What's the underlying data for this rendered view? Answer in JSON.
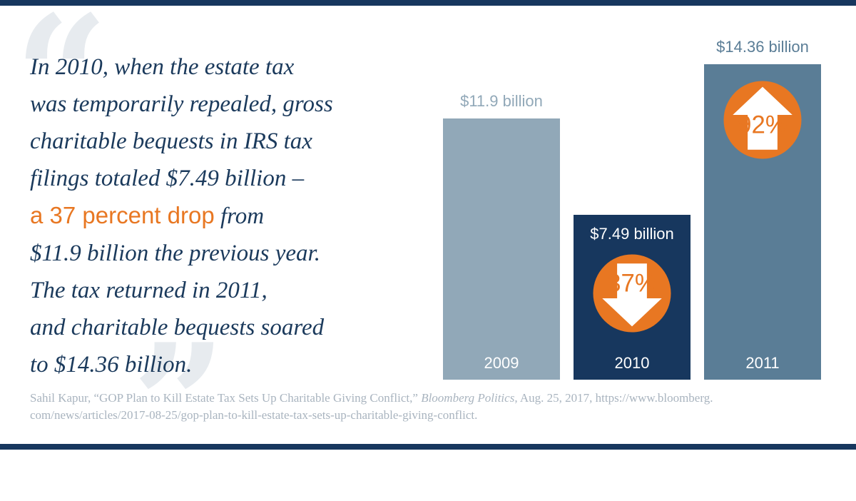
{
  "quote": {
    "line1": "In 2010, when the estate tax",
    "line2": "was temporarily repealed, gross",
    "line3": "charitable bequests in IRS tax",
    "line4": "filings totaled $7.49 billion –",
    "line5_highlight": "a 37 percent drop",
    "line5_rest": " from",
    "line6": "$11.9 billion the previous year.",
    "line7": "The tax returned in 2011,",
    "line8": "and charitable bequests soared",
    "line9": "to $14.36 billion."
  },
  "citation": {
    "part1": "Sahil Kapur, “GOP Plan to Kill Estate Tax Sets Up Charitable Giving Conflict,” ",
    "publication": "Bloomberg Politics",
    "part2": ", Aug. 25, 2017, https://www.bloomberg.",
    "line2": "com/news/articles/2017-08-25/gop-plan-to-kill-estate-tax-sets-up-charitable-giving-conflict."
  },
  "colors": {
    "navy": "#17375e",
    "bar_2009": "#91a8b8",
    "bar_2010": "#17375e",
    "bar_2011": "#5a7d96",
    "accent_orange": "#e87722"
  },
  "chart_data": {
    "type": "bar",
    "categories": [
      "2009",
      "2010",
      "2011"
    ],
    "values": [
      11.9,
      7.49,
      14.36
    ],
    "value_labels": [
      "$11.9 billion",
      "$7.49 billion",
      "$14.36 billion"
    ],
    "change_labels": [
      "",
      "37%",
      "92%"
    ],
    "change_direction": [
      "",
      "down-arrow-icon",
      "up-arrow-icon"
    ],
    "ylim": [
      0,
      14.36
    ],
    "grid": false,
    "legend": "none"
  }
}
